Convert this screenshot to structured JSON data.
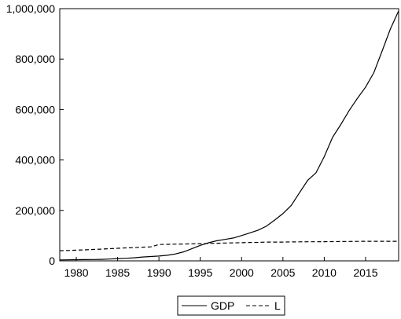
{
  "chart_data": {
    "type": "line",
    "title": "",
    "xlabel": "",
    "ylabel": "",
    "xlim": [
      1978,
      2019
    ],
    "ylim": [
      0,
      1000000
    ],
    "x_ticks": [
      1980,
      1985,
      1990,
      1995,
      2000,
      2005,
      2010,
      2015
    ],
    "x_tick_labels": [
      "1980",
      "1985",
      "1990",
      "1995",
      "2000",
      "2005",
      "2010",
      "2015"
    ],
    "y_ticks": [
      0,
      200000,
      400000,
      600000,
      800000,
      1000000
    ],
    "y_tick_labels": [
      "0",
      "200,000",
      "400,000",
      "600,000",
      "800,000",
      "1,000,000"
    ],
    "grid": false,
    "legend_position": "bottom-center",
    "series": [
      {
        "name": "GDP",
        "line_style": "solid",
        "color": "#000000",
        "x": [
          1978,
          1979,
          1980,
          1981,
          1982,
          1983,
          1984,
          1985,
          1986,
          1987,
          1988,
          1989,
          1990,
          1991,
          1992,
          1993,
          1994,
          1995,
          1996,
          1997,
          1998,
          1999,
          2000,
          2001,
          2002,
          2003,
          2004,
          2005,
          2006,
          2007,
          2008,
          2009,
          2010,
          2011,
          2012,
          2013,
          2014,
          2015,
          2016,
          2017,
          2018,
          2019
        ],
        "values": [
          3700,
          4100,
          4600,
          4900,
          5400,
          6000,
          7300,
          9100,
          10400,
          12200,
          15200,
          17200,
          18900,
          22000,
          27300,
          35700,
          48600,
          61300,
          71800,
          79700,
          85200,
          90600,
          100300,
          110900,
          121700,
          137400,
          161800,
          187300,
          219400,
          270100,
          319500,
          349100,
          413000,
          489300,
          540400,
          595200,
          643600,
          689100,
          746400,
          832000,
          919300,
          990900
        ]
      },
      {
        "name": "L",
        "line_style": "dashed",
        "color": "#000000",
        "x": [
          1978,
          1979,
          1980,
          1981,
          1982,
          1983,
          1984,
          1985,
          1986,
          1987,
          1988,
          1989,
          1990,
          1991,
          1992,
          1993,
          1994,
          1995,
          1996,
          1997,
          1998,
          1999,
          2000,
          2001,
          2002,
          2003,
          2004,
          2005,
          2006,
          2007,
          2008,
          2009,
          2010,
          2011,
          2012,
          2013,
          2014,
          2015,
          2016,
          2017,
          2018,
          2019
        ],
        "values": [
          40200,
          41000,
          42400,
          43700,
          45300,
          46400,
          48200,
          49900,
          51300,
          52800,
          54300,
          55300,
          64700,
          65500,
          66200,
          66800,
          67500,
          68100,
          68950,
          69800,
          70600,
          71400,
          72100,
          73000,
          73300,
          74400,
          74600,
          74600,
          74980,
          75320,
          75560,
          75830,
          76100,
          76420,
          76700,
          76980,
          77250,
          77450,
          77600,
          77640,
          77590,
          77470
        ]
      }
    ]
  }
}
